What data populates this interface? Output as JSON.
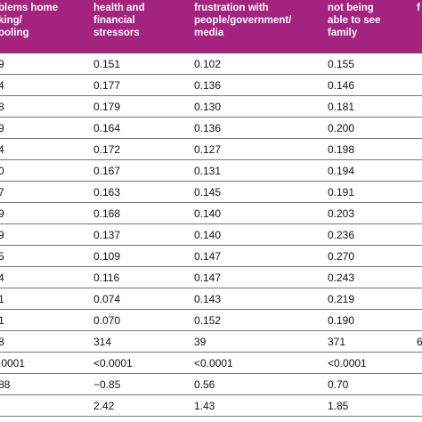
{
  "header": {
    "columns": [
      [
        "blems home",
        "king/",
        "ooling"
      ],
      [
        "health and",
        "financial",
        "stressors"
      ],
      [
        "frustration with",
        "people/government/",
        "media"
      ],
      [
        "not being",
        "able to see",
        "family"
      ],
      [
        "f",
        "",
        ""
      ]
    ]
  },
  "rows": [
    [
      "9",
      "0.151",
      "0.102",
      "0.155",
      ""
    ],
    [
      "4",
      "0.177",
      "0.136",
      "0.146",
      ""
    ],
    [
      "8",
      "0.179",
      "0.130",
      "0.181",
      ""
    ],
    [
      "9",
      "0.164",
      "0.136",
      "0.200",
      ""
    ],
    [
      "4",
      "0.172",
      "0.127",
      "0.198",
      ""
    ],
    [
      "0",
      "0.167",
      "0.131",
      "0.194",
      ""
    ],
    [
      "7",
      "0.163",
      "0.145",
      "0.191",
      ""
    ],
    [
      "9",
      "0.168",
      "0.140",
      "0.203",
      ""
    ],
    [
      "9",
      "0.137",
      "0.140",
      "0.236",
      ""
    ],
    [
      "5",
      "0.109",
      "0.147",
      "0.270",
      ""
    ],
    [
      "4",
      "0.116",
      "0.147",
      "0.243",
      ""
    ],
    [
      "1",
      "0.074",
      "0.143",
      "0.219",
      ""
    ],
    [
      "1",
      "0.070",
      "0.152",
      "0.190",
      ""
    ],
    [
      "8",
      "314",
      "39",
      "371",
      "6"
    ],
    [
      ".0001",
      "<0.0001",
      "<0.0001",
      "<0.0001",
      ""
    ],
    [
      "88",
      "−0.85",
      "0.56",
      "0.70",
      ""
    ],
    [
      "",
      "2.42",
      "1.43",
      "1.85",
      ""
    ]
  ]
}
